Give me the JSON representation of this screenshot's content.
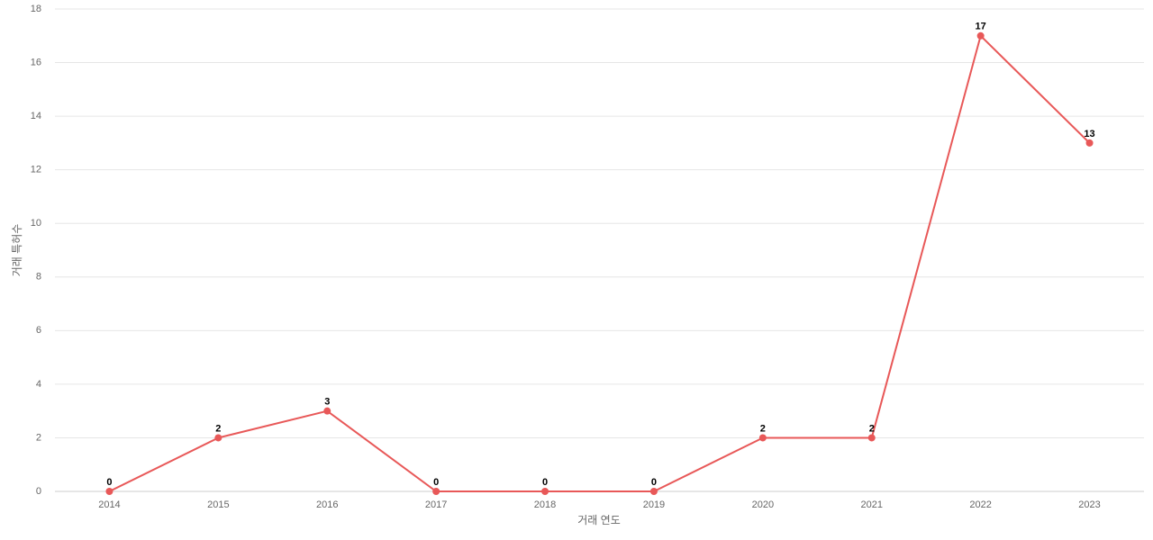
{
  "chart_data": {
    "type": "line",
    "x_label": "거래 연도",
    "y_label": "거래 특허수",
    "categories": [
      "2014",
      "2015",
      "2016",
      "2017",
      "2018",
      "2019",
      "2020",
      "2021",
      "2022",
      "2023"
    ],
    "values": [
      0,
      2,
      3,
      0,
      0,
      0,
      2,
      2,
      17,
      13
    ],
    "color": "#e85858",
    "ylim": [
      0,
      18
    ],
    "yticks": [
      0,
      2,
      4,
      6,
      8,
      10,
      12,
      14,
      16,
      18
    ],
    "grid": true
  }
}
